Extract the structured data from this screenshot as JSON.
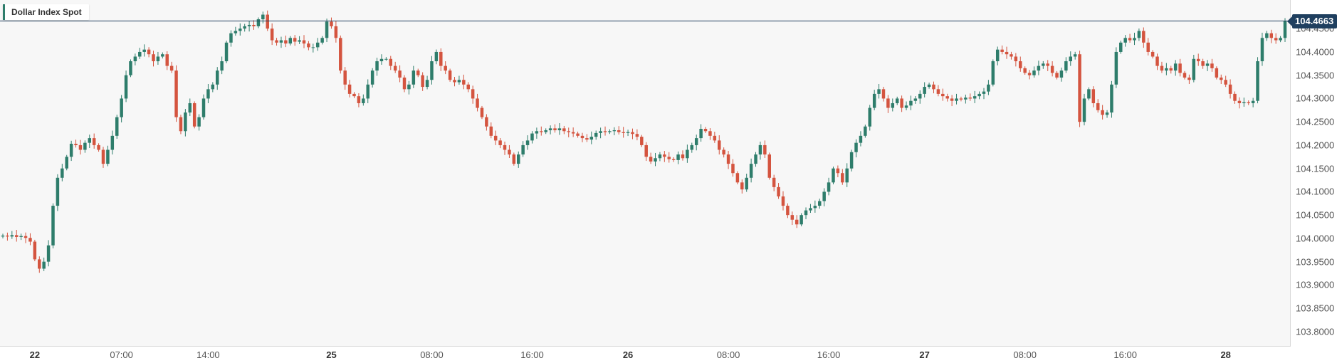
{
  "legend": {
    "name": "Dollar Index Spot"
  },
  "last_price": {
    "label": "104.4663",
    "value": 104.4663
  },
  "colors": {
    "up": "#2e7d6b",
    "down": "#d4543f",
    "price_line": "#1f3f5f",
    "background": "#f7f7f7"
  },
  "chart_data": {
    "type": "candlestick",
    "title": "Dollar Index Spot",
    "ylim": [
      103.78,
      104.49
    ],
    "y_ticks": [
      "103.8000",
      "103.8500",
      "103.9000",
      "103.9500",
      "104.0000",
      "104.0500",
      "104.1000",
      "104.1500",
      "104.2000",
      "104.2500",
      "104.3000",
      "104.3500",
      "104.4000",
      "104.4500"
    ],
    "x_ticks": [
      {
        "label": "22",
        "bold": true,
        "index": 7
      },
      {
        "label": "07:00",
        "bold": false,
        "index": 26
      },
      {
        "label": "14:00",
        "bold": false,
        "index": 45
      },
      {
        "label": "25",
        "bold": true,
        "index": 72
      },
      {
        "label": "08:00",
        "bold": false,
        "index": 94
      },
      {
        "label": "16:00",
        "bold": false,
        "index": 116
      },
      {
        "label": "26",
        "bold": true,
        "index": 137
      },
      {
        "label": "08:00",
        "bold": false,
        "index": 159
      },
      {
        "label": "16:00",
        "bold": false,
        "index": 181
      },
      {
        "label": "27",
        "bold": true,
        "index": 202
      },
      {
        "label": "08:00",
        "bold": false,
        "index": 224
      },
      {
        "label": "16:00",
        "bold": false,
        "index": 246
      },
      {
        "label": "28",
        "bold": true,
        "index": 268
      }
    ],
    "closes": [
      104.006,
      104.004,
      104.007,
      104.003,
      104.005,
      104.001,
      103.993,
      103.955,
      103.935,
      103.95,
      103.985,
      104.07,
      104.13,
      104.15,
      104.175,
      104.203,
      104.2,
      104.19,
      104.205,
      104.215,
      104.2,
      104.19,
      104.16,
      104.19,
      104.22,
      104.26,
      104.3,
      104.35,
      104.38,
      104.39,
      104.4,
      104.405,
      104.395,
      104.38,
      104.39,
      104.395,
      104.37,
      104.36,
      104.26,
      104.23,
      104.27,
      104.29,
      104.24,
      104.26,
      104.3,
      104.32,
      104.33,
      104.36,
      104.38,
      104.42,
      104.44,
      104.445,
      104.45,
      104.455,
      104.458,
      104.455,
      104.47,
      104.48,
      104.45,
      104.425,
      104.42,
      104.425,
      104.418,
      104.43,
      104.422,
      104.425,
      104.418,
      104.41,
      104.41,
      104.42,
      104.43,
      104.465,
      104.455,
      104.43,
      104.36,
      104.33,
      104.31,
      104.305,
      104.29,
      104.3,
      104.33,
      104.36,
      104.38,
      104.385,
      104.385,
      104.37,
      104.36,
      104.345,
      104.32,
      104.33,
      104.36,
      104.35,
      104.325,
      104.34,
      104.38,
      104.4,
      104.37,
      104.36,
      104.34,
      104.335,
      104.34,
      104.33,
      104.32,
      104.3,
      104.28,
      104.26,
      104.24,
      104.22,
      104.21,
      104.2,
      104.19,
      104.18,
      104.16,
      104.18,
      104.2,
      104.21,
      104.225,
      104.23,
      104.228,
      104.232,
      104.236,
      104.232,
      104.236,
      104.23,
      104.228,
      104.225,
      104.22,
      104.215,
      104.212,
      104.218,
      104.226,
      104.23,
      104.228,
      104.23,
      104.232,
      104.228,
      104.226,
      104.228,
      104.224,
      104.218,
      104.2,
      104.175,
      104.165,
      104.172,
      104.18,
      104.175,
      104.17,
      104.168,
      104.18,
      104.172,
      104.19,
      104.2,
      104.215,
      104.235,
      104.23,
      104.22,
      104.21,
      104.19,
      104.18,
      104.16,
      104.14,
      104.12,
      104.105,
      104.13,
      104.16,
      104.18,
      104.2,
      104.18,
      104.13,
      104.11,
      104.09,
      104.07,
      104.05,
      104.04,
      104.03,
      104.05,
      104.06,
      104.065,
      104.07,
      104.08,
      104.1,
      104.12,
      104.15,
      104.14,
      104.12,
      104.15,
      104.185,
      104.205,
      104.22,
      104.24,
      104.28,
      104.31,
      104.32,
      104.3,
      104.28,
      104.29,
      104.3,
      104.28,
      104.285,
      104.295,
      104.3,
      104.31,
      104.325,
      104.33,
      104.32,
      104.31,
      104.305,
      104.3,
      104.295,
      104.3,
      104.298,
      104.302,
      104.3,
      104.305,
      104.31,
      104.315,
      104.33,
      104.38,
      104.405,
      104.4,
      104.395,
      104.39,
      104.38,
      104.365,
      104.355,
      104.35,
      104.36,
      104.37,
      104.375,
      104.37,
      104.355,
      104.345,
      104.36,
      104.38,
      104.39,
      104.395,
      104.25,
      104.3,
      104.32,
      104.29,
      104.275,
      104.265,
      104.27,
      104.33,
      104.4,
      104.42,
      104.43,
      104.425,
      104.43,
      104.445,
      104.42,
      104.4,
      104.39,
      104.37,
      104.36,
      104.365,
      104.36,
      104.375,
      104.355,
      104.345,
      104.34,
      104.385,
      104.38,
      104.37,
      104.375,
      104.365,
      104.345,
      104.34,
      104.33,
      104.31,
      104.295,
      104.29,
      104.292,
      104.29,
      104.295,
      104.38,
      104.43,
      104.44,
      104.43,
      104.425,
      104.43,
      104.466
    ]
  }
}
